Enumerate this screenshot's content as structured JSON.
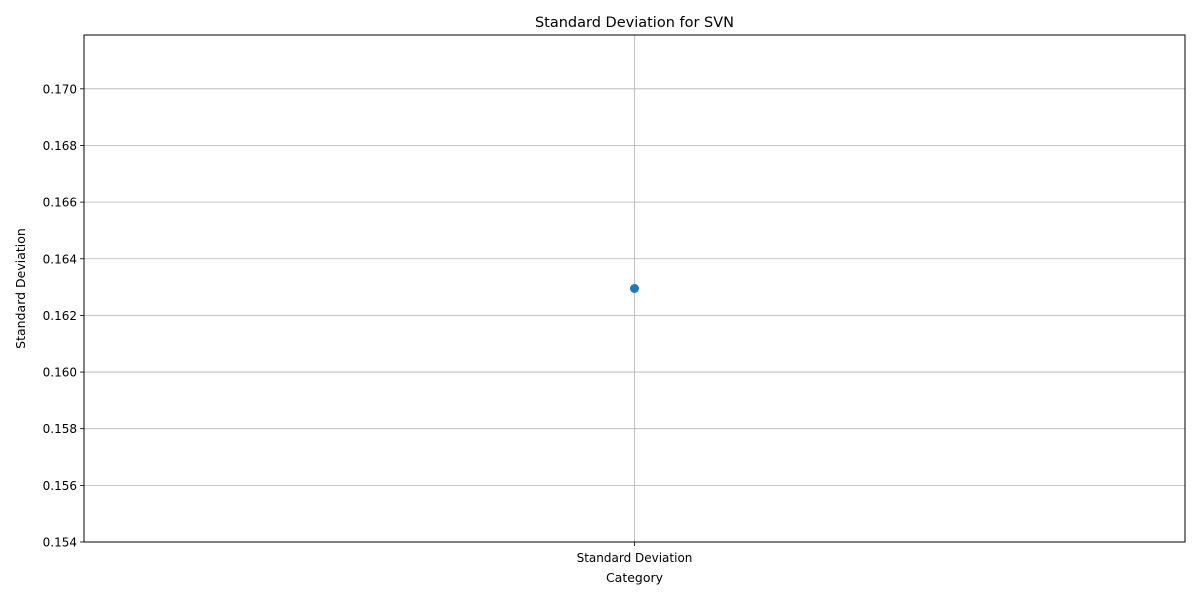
{
  "chart_data": {
    "type": "scatter",
    "title": "Standard Deviation for SVN",
    "xlabel": "Category",
    "ylabel": "Standard Deviation",
    "categories": [
      "Standard Deviation"
    ],
    "series": [
      {
        "values": [
          0.16295
        ],
        "color": "#1f77b4"
      }
    ],
    "ylim": [
      0.154,
      0.1719
    ],
    "yticks": [
      0.154,
      0.156,
      0.158,
      0.16,
      0.162,
      0.164,
      0.166,
      0.168,
      0.17
    ],
    "ytick_labels": [
      "0.154",
      "0.156",
      "0.158",
      "0.160",
      "0.162",
      "0.164",
      "0.166",
      "0.168",
      "0.170"
    ],
    "grid": true
  }
}
